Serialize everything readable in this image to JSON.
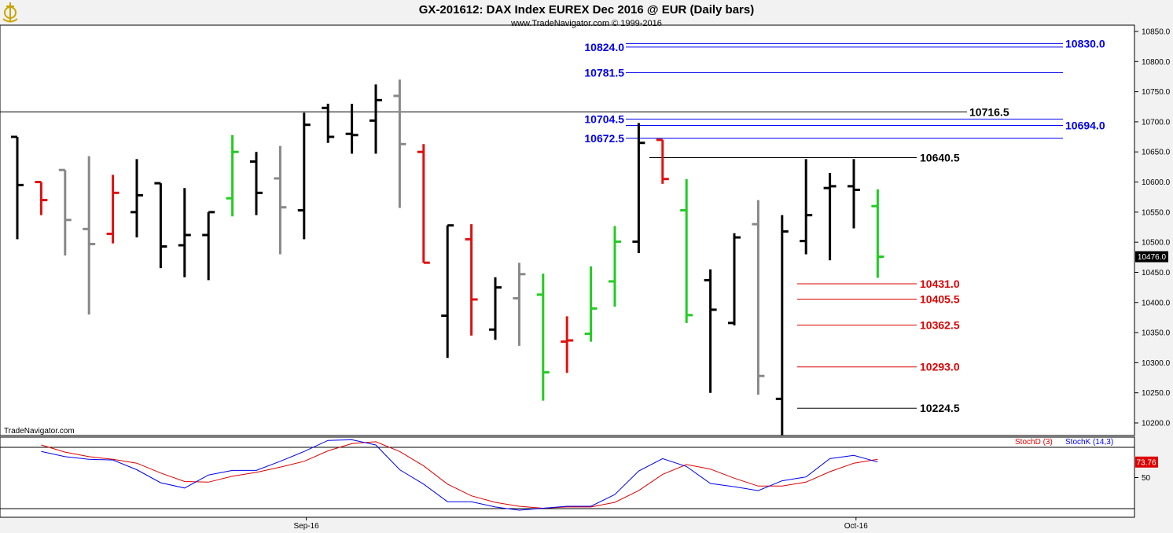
{
  "header": {
    "title": "GX-201612:  DAX Index EUREX Dec 2016 @ EUR  (Daily bars)",
    "copyright": "www.TradeNavigator.com © 1999-2016",
    "logo_icon": "ship-wheel-icon"
  },
  "watermark": "TradeNavigator.com",
  "colors": {
    "up": "#22cc22",
    "down": "#e01010",
    "neutral": "#000000",
    "gray": "#888888",
    "blue": "#0000ee",
    "red": "#dd0000"
  },
  "chart_data": [
    {
      "type": "ohlc",
      "ylim": [
        10180,
        10860
      ],
      "y_ticks": [
        "10850.0",
        "10800.0",
        "10750.0",
        "10700.0",
        "10650.0",
        "10600.0",
        "10550.0",
        "10500.0",
        "10450.0",
        "10400.0",
        "10350.0",
        "10300.0",
        "10250.0",
        "10200.0"
      ],
      "y_tick_values": [
        10850,
        10800,
        10750,
        10700,
        10650,
        10600,
        10550,
        10500,
        10450,
        10400,
        10350,
        10300,
        10250,
        10200
      ],
      "x_ticks": [
        {
          "label": "Sep-16",
          "index": 11.5
        },
        {
          "label": "Oct-16",
          "index": 34.5
        }
      ],
      "last_price": "10476.0",
      "last_value": 10476,
      "bars": [
        {
          "o": 10675,
          "h": 10675,
          "l": 10505,
          "c": 10595,
          "col": "neutral"
        },
        {
          "o": 10600,
          "h": 10600,
          "l": 10545,
          "c": 10570,
          "col": "down"
        },
        {
          "o": 10620,
          "h": 10620,
          "l": 10478,
          "c": 10537,
          "col": "gray"
        },
        {
          "o": 10522,
          "h": 10643,
          "l": 10380,
          "c": 10497,
          "col": "gray"
        },
        {
          "o": 10514,
          "h": 10612,
          "l": 10498,
          "c": 10582,
          "col": "down"
        },
        {
          "o": 10550,
          "h": 10638,
          "l": 10508,
          "c": 10578,
          "col": "neutral"
        },
        {
          "o": 10598,
          "h": 10598,
          "l": 10457,
          "c": 10493,
          "col": "neutral"
        },
        {
          "o": 10495,
          "h": 10590,
          "l": 10442,
          "c": 10512,
          "col": "neutral"
        },
        {
          "o": 10512,
          "h": 10550,
          "l": 10437,
          "c": 10550,
          "col": "neutral"
        },
        {
          "o": 10573,
          "h": 10678,
          "l": 10543,
          "c": 10650,
          "col": "up"
        },
        {
          "o": 10634,
          "h": 10650,
          "l": 10545,
          "c": 10582,
          "col": "neutral"
        },
        {
          "o": 10606,
          "h": 10660,
          "l": 10480,
          "c": 10558,
          "col": "gray"
        },
        {
          "o": 10553,
          "h": 10715,
          "l": 10505,
          "c": 10695,
          "col": "neutral"
        },
        {
          "o": 10723,
          "h": 10730,
          "l": 10665,
          "c": 10675,
          "col": "neutral"
        },
        {
          "o": 10680,
          "h": 10730,
          "l": 10647,
          "c": 10678,
          "col": "neutral"
        },
        {
          "o": 10702,
          "h": 10762,
          "l": 10647,
          "c": 10736,
          "col": "neutral"
        },
        {
          "o": 10743,
          "h": 10770,
          "l": 10557,
          "c": 10663,
          "col": "gray"
        },
        {
          "o": 10650,
          "h": 10663,
          "l": 10466,
          "c": 10466,
          "col": "down"
        },
        {
          "o": 10378,
          "h": 10528,
          "l": 10308,
          "c": 10528,
          "col": "neutral"
        },
        {
          "o": 10505,
          "h": 10530,
          "l": 10345,
          "c": 10405,
          "col": "down"
        },
        {
          "o": 10355,
          "h": 10442,
          "l": 10338,
          "c": 10425,
          "col": "neutral"
        },
        {
          "o": 10407,
          "h": 10466,
          "l": 10328,
          "c": 10447,
          "col": "gray"
        },
        {
          "o": 10413,
          "h": 10448,
          "l": 10237,
          "c": 10284,
          "col": "up"
        },
        {
          "o": 10335,
          "h": 10377,
          "l": 10283,
          "c": 10337,
          "col": "down"
        },
        {
          "o": 10348,
          "h": 10460,
          "l": 10335,
          "c": 10390,
          "col": "up"
        },
        {
          "o": 10435,
          "h": 10527,
          "l": 10393,
          "c": 10501,
          "col": "up"
        },
        {
          "o": 10501,
          "h": 10698,
          "l": 10482,
          "c": 10665,
          "col": "neutral"
        },
        {
          "o": 10670,
          "h": 10670,
          "l": 10597,
          "c": 10605,
          "col": "down"
        },
        {
          "o": 10553,
          "h": 10605,
          "l": 10366,
          "c": 10379,
          "col": "up"
        },
        {
          "o": 10437,
          "h": 10455,
          "l": 10250,
          "c": 10388,
          "col": "neutral"
        },
        {
          "o": 10366,
          "h": 10515,
          "l": 10362,
          "c": 10508,
          "col": "neutral"
        },
        {
          "o": 10530,
          "h": 10570,
          "l": 10247,
          "c": 10278,
          "col": "gray"
        },
        {
          "o": 10240,
          "h": 10545,
          "l": 10180,
          "c": 10518,
          "col": "neutral"
        },
        {
          "o": 10502,
          "h": 10638,
          "l": 10480,
          "c": 10545,
          "col": "neutral"
        },
        {
          "o": 10590,
          "h": 10615,
          "l": 10470,
          "c": 10593,
          "col": "neutral"
        },
        {
          "o": 10593,
          "h": 10638,
          "l": 10523,
          "c": 10587,
          "col": "neutral"
        },
        {
          "o": 10560,
          "h": 10588,
          "l": 10441,
          "c": 10476,
          "col": "up"
        }
      ],
      "levels": [
        {
          "value": 10830,
          "label": "10830.0",
          "color": "blue",
          "side": "right",
          "x_start": 26
        },
        {
          "value": 10824,
          "label": "10824.0",
          "color": "blue",
          "side": "left",
          "x_start": 26
        },
        {
          "value": 10781.5,
          "label": "10781.5",
          "color": "blue",
          "side": "left",
          "x_start": 26
        },
        {
          "value": 10716.5,
          "label": "10716.5",
          "color": "neutral",
          "side": "mid",
          "x_start": 0
        },
        {
          "value": 10704.5,
          "label": "10704.5",
          "color": "blue",
          "side": "left",
          "x_start": 26
        },
        {
          "value": 10694,
          "label": "10694.0",
          "color": "blue",
          "side": "right",
          "x_start": 26
        },
        {
          "value": 10672.5,
          "label": "10672.5",
          "color": "blue",
          "side": "left",
          "x_start": 26
        },
        {
          "value": 10640.5,
          "label": "10640.5",
          "color": "neutral",
          "side": "mid2",
          "x_start": 26
        },
        {
          "value": 10431,
          "label": "10431.0",
          "color": "red",
          "side": "mid2",
          "x_start": 32
        },
        {
          "value": 10405.5,
          "label": "10405.5",
          "color": "red",
          "side": "mid2",
          "x_start": 32
        },
        {
          "value": 10362.5,
          "label": "10362.5",
          "color": "red",
          "side": "mid2",
          "x_start": 32
        },
        {
          "value": 10293,
          "label": "10293.0",
          "color": "red",
          "side": "mid2",
          "x_start": 32
        },
        {
          "value": 10224.5,
          "label": "10224.5",
          "color": "neutral",
          "side": "mid2",
          "x_start": 32
        }
      ]
    },
    {
      "type": "line",
      "ylim": [
        -5,
        105
      ],
      "y_ticks": [
        "50"
      ],
      "y_tick_values": [
        50
      ],
      "last_value_label": "73.76",
      "last_value": 73.76,
      "legend": [
        "StochD (3)",
        "StochK (14,3)"
      ],
      "series": [
        {
          "name": "StochK (14,3)",
          "color": "blue",
          "values": [
            null,
            90,
            82,
            78,
            77,
            62,
            42,
            34,
            54,
            61,
            61,
            75,
            90,
            107,
            108,
            100,
            62,
            40,
            13,
            13,
            5,
            0,
            3,
            6,
            6,
            24,
            60,
            79,
            67,
            41,
            36,
            30,
            45,
            51,
            79,
            84,
            73.8
          ]
        },
        {
          "name": "StochD (3)",
          "color": "red",
          "values": [
            null,
            100,
            89,
            82,
            78,
            72,
            57,
            44,
            43,
            52,
            58,
            66,
            75,
            91,
            102,
            105,
            90,
            68,
            40,
            22,
            12,
            6,
            3,
            5,
            5,
            12,
            30,
            55,
            70,
            63,
            49,
            37,
            37,
            43,
            59,
            72,
            78
          ]
        }
      ]
    }
  ]
}
